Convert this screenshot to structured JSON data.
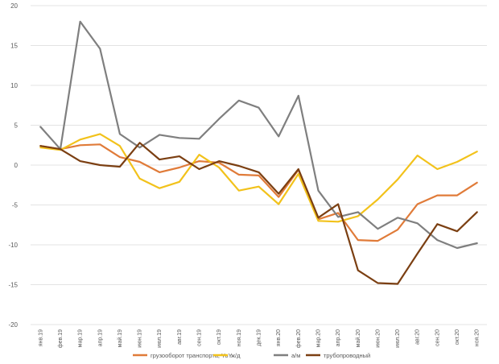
{
  "chart_data": {
    "type": "line",
    "title": "",
    "xlabel": "",
    "ylabel": "",
    "ylim": [
      -20,
      20
    ],
    "yticks": [
      -20,
      -15,
      -10,
      -5,
      0,
      5,
      10,
      15,
      20
    ],
    "grid": "horizontal",
    "legend_position": "bottom",
    "categories": [
      "янв.19",
      "фев.19",
      "мар.19",
      "апр.19",
      "май.19",
      "июн.19",
      "июл.19",
      "авг.19",
      "сен.19",
      "окт.19",
      "ноя.19",
      "дек.19",
      "янв.20",
      "фев.20",
      "мар.20",
      "апр.20",
      "май.20",
      "июн.20",
      "июл.20",
      "авг.20",
      "сен.20",
      "окт.20",
      "ноя.20"
    ],
    "series": [
      {
        "name": "грузооборот транспорта, YoY",
        "color": "#e07b39",
        "values": [
          2.4,
          2.0,
          2.5,
          2.6,
          1.0,
          0.4,
          -0.9,
          -0.3,
          0.5,
          0.3,
          -1.2,
          -1.3,
          -4.0,
          -0.6,
          -6.8,
          -6.0,
          -9.4,
          -9.5,
          -8.1,
          -4.9,
          -3.8,
          -3.8,
          -2.2
        ]
      },
      {
        "name": "ж/д",
        "color": "#f2c21b",
        "values": [
          2.2,
          1.9,
          3.2,
          3.9,
          2.4,
          -1.7,
          -2.9,
          -2.1,
          1.3,
          -0.3,
          -3.2,
          -2.7,
          -4.9,
          -1.1,
          -7.0,
          -7.1,
          -6.4,
          -4.3,
          -1.8,
          1.2,
          -0.5,
          0.4,
          1.7
        ]
      },
      {
        "name": "а/м",
        "color": "#7f7f7f",
        "values": [
          4.8,
          2.0,
          18.0,
          14.6,
          3.9,
          2.2,
          3.8,
          3.4,
          3.3,
          5.8,
          8.1,
          7.2,
          3.6,
          8.7,
          -3.2,
          -6.5,
          -5.9,
          -8.0,
          -6.6,
          -7.3,
          -9.4,
          -10.4,
          -9.8
        ]
      },
      {
        "name": "трубопроводный",
        "color": "#7b3f12",
        "values": [
          2.4,
          2.0,
          0.5,
          0.0,
          -0.2,
          2.8,
          0.7,
          1.1,
          -0.5,
          0.5,
          -0.1,
          -0.9,
          -3.6,
          -0.5,
          -6.6,
          -4.9,
          -13.2,
          -14.8,
          -14.9,
          -11.1,
          -7.4,
          -8.3,
          -5.9
        ]
      }
    ]
  }
}
